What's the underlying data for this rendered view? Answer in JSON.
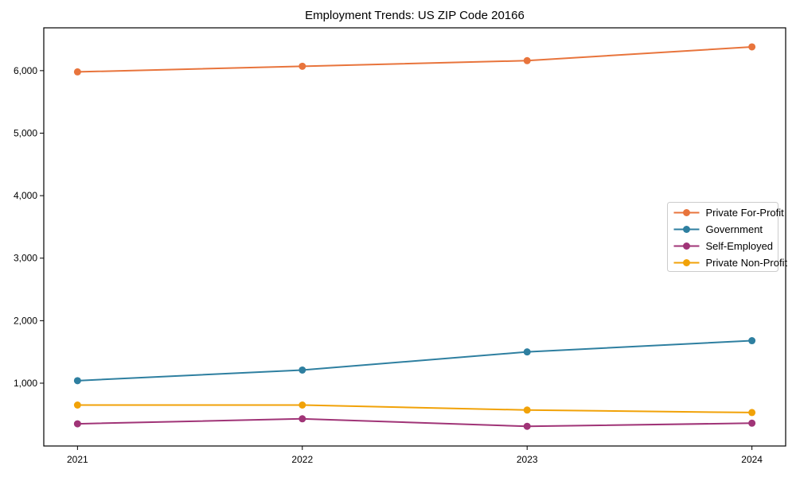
{
  "window": {
    "background": "#ffffff"
  },
  "chart_data": {
    "type": "line",
    "title": "Employment Trends: US ZIP Code 20166",
    "xlabel": "",
    "ylabel": "",
    "x": [
      2021,
      2022,
      2023,
      2024
    ],
    "x_tick_labels": [
      "2021",
      "2022",
      "2023",
      "2024"
    ],
    "series": [
      {
        "name": "Private For-Profit",
        "color": "#e8743c",
        "values": [
          5980,
          6070,
          6160,
          6380
        ]
      },
      {
        "name": "Government",
        "color": "#2e7fa0",
        "values": [
          1040,
          1210,
          1500,
          1680
        ]
      },
      {
        "name": "Self-Employed",
        "color": "#a03477",
        "values": [
          350,
          430,
          310,
          360
        ]
      },
      {
        "name": "Private Non-Profit",
        "color": "#f1a208",
        "values": [
          650,
          650,
          570,
          530
        ]
      }
    ],
    "yticks": [
      {
        "value": 1000,
        "label": "1,000"
      },
      {
        "value": 2000,
        "label": "2,000"
      },
      {
        "value": 3000,
        "label": "3,000"
      },
      {
        "value": 4000,
        "label": "4,000"
      },
      {
        "value": 5000,
        "label": "5,000"
      },
      {
        "value": 6000,
        "label": "6,000"
      }
    ],
    "xlim": [
      2020.85,
      2024.15
    ],
    "ylim": [
      -5,
      6685
    ],
    "grid": false,
    "legend_position": "center-right",
    "marker": "circle",
    "line_width": 2,
    "marker_radius": 4.5,
    "axis_color": "#000000",
    "text_color": "#000000",
    "legend_border_color": "#cccccc",
    "legend_background": "#ffffff"
  }
}
